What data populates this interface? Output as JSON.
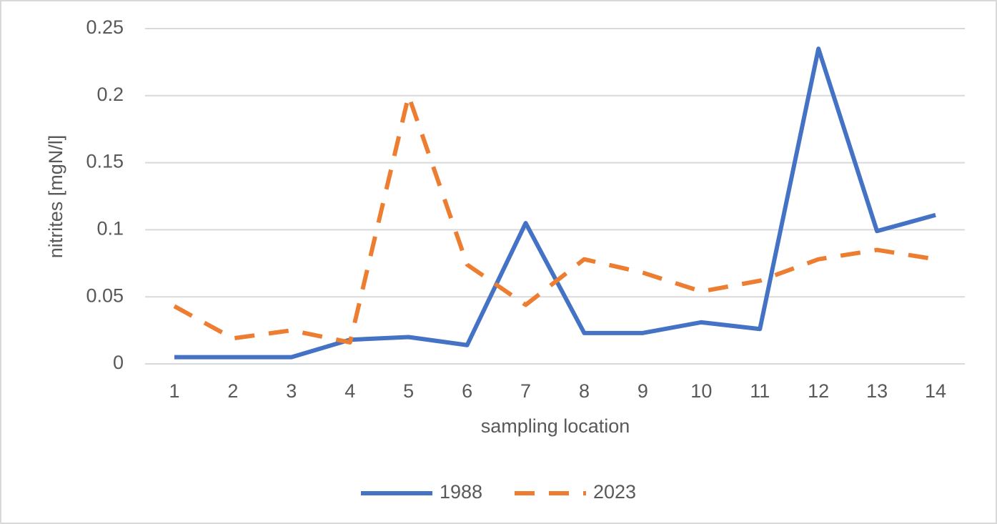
{
  "chart_data": {
    "type": "line",
    "x_label": "sampling location",
    "y_label": "nitrites [mgN/l]",
    "categories": [
      "1",
      "2",
      "3",
      "4",
      "5",
      "6",
      "7",
      "8",
      "9",
      "10",
      "11",
      "12",
      "13",
      "14"
    ],
    "series": [
      {
        "name": "1988",
        "color": "#4472c4",
        "dash": "solid",
        "values": [
          0.005,
          0.005,
          0.005,
          0.018,
          0.02,
          0.014,
          0.105,
          0.023,
          0.023,
          0.031,
          0.026,
          0.235,
          0.099,
          0.111
        ]
      },
      {
        "name": "2023",
        "color": "#ed7d31",
        "dash": "dashed",
        "values": [
          0.043,
          0.019,
          0.025,
          0.016,
          0.2,
          0.074,
          0.044,
          0.078,
          0.068,
          0.054,
          0.062,
          0.078,
          0.085,
          0.078
        ]
      }
    ],
    "ylim": [
      0,
      0.25
    ],
    "yticks": [
      0,
      0.05,
      0.1,
      0.15,
      0.2,
      0.25
    ],
    "grid": true,
    "legend": "bottom"
  }
}
